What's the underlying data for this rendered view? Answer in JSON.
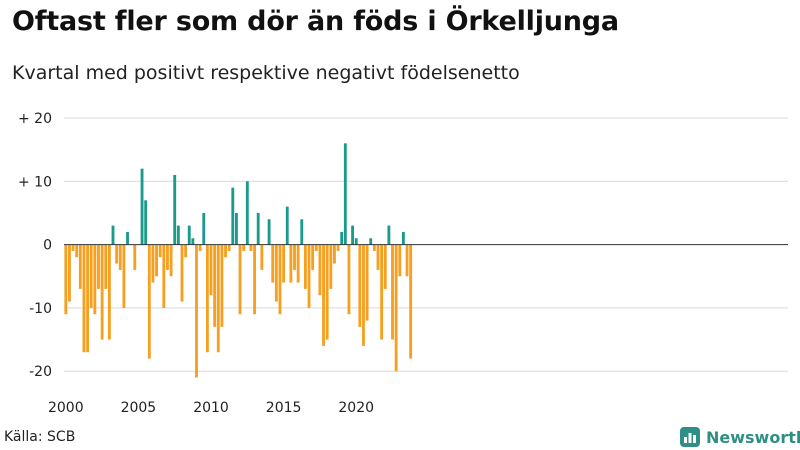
{
  "title": "Oftast fler som dör än föds i Örkelljunga",
  "subtitle": "Kvartal med positivt respektive negativt födelsenetto",
  "source": "Källa: SCB",
  "brand": {
    "name": "Newsworthy",
    "icon": "chart-logo-icon"
  },
  "colors": {
    "positive": "#1a9a8a",
    "negative": "#f5a020",
    "grid": "#d9d9d9",
    "zero_line": "#333333",
    "brand": "#2f8f85"
  },
  "chart_data": {
    "type": "bar",
    "title": "Oftast fler som dör än föds i Örkelljunga",
    "subtitle": "Kvartal med positivt respektive negativt födelsenetto",
    "xlabel": "",
    "ylabel": "",
    "start_year": 2000,
    "periods_per_year": 4,
    "ylim": [
      -22,
      20
    ],
    "yticks": [
      20,
      10,
      0,
      -10,
      -20
    ],
    "ytick_labels": [
      "+ 20",
      "+ 10",
      "0",
      "-10",
      "-20"
    ],
    "xticks": [
      2000,
      2005,
      2010,
      2015,
      2020
    ],
    "xtick_labels": [
      "2000",
      "2005",
      "2010",
      "2015",
      "2020"
    ],
    "grid": true,
    "values": [
      -11,
      -9,
      -1,
      -2,
      -7,
      -17,
      -17,
      -10,
      -11,
      -7,
      -15,
      -7,
      -15,
      3,
      -3,
      -4,
      -10,
      2,
      0,
      -4,
      0,
      12,
      7,
      -18,
      -6,
      -5,
      -2,
      -10,
      -4,
      -5,
      11,
      3,
      -9,
      -2,
      3,
      1,
      -21,
      -1,
      5,
      -17,
      -8,
      -13,
      -17,
      -13,
      -2,
      -1,
      9,
      5,
      -11,
      -1,
      10,
      -1,
      -11,
      5,
      -4,
      0,
      4,
      -6,
      -9,
      -11,
      -6,
      6,
      -6,
      -4,
      -6,
      4,
      -7,
      -10,
      -4,
      -1,
      -8,
      -16,
      -15,
      -7,
      -3,
      -1,
      2,
      16,
      -11,
      3,
      1,
      -13,
      -16,
      -12,
      1,
      -1,
      -4,
      -15,
      -7,
      3,
      -15,
      -20,
      -5,
      2,
      -5,
      -18
    ]
  }
}
